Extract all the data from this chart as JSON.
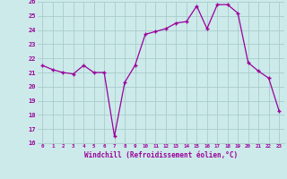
{
  "x": [
    0,
    1,
    2,
    3,
    4,
    5,
    6,
    7,
    8,
    9,
    10,
    11,
    12,
    13,
    14,
    15,
    16,
    17,
    18,
    19,
    20,
    21,
    22,
    23
  ],
  "y": [
    21.5,
    21.2,
    21.0,
    20.9,
    21.5,
    21.0,
    21.0,
    16.5,
    20.3,
    21.5,
    23.7,
    23.9,
    24.1,
    24.5,
    24.6,
    25.7,
    24.1,
    25.8,
    25.8,
    25.2,
    21.7,
    21.1,
    20.6,
    18.3
  ],
  "xlabel": "Windchill (Refroidissement éolien,°C)",
  "ylim": [
    16,
    26
  ],
  "xlim": [
    -0.5,
    23.5
  ],
  "yticks": [
    16,
    17,
    18,
    19,
    20,
    21,
    22,
    23,
    24,
    25,
    26
  ],
  "xticks": [
    0,
    1,
    2,
    3,
    4,
    5,
    6,
    7,
    8,
    9,
    10,
    11,
    12,
    13,
    14,
    15,
    16,
    17,
    18,
    19,
    20,
    21,
    22,
    23
  ],
  "line_color": "#9b009b",
  "marker_color": "#9b009b",
  "bg_color": "#cceaea",
  "grid_color": "#aacccc",
  "xlabel_color": "#9b009b",
  "tick_color": "#9b009b"
}
